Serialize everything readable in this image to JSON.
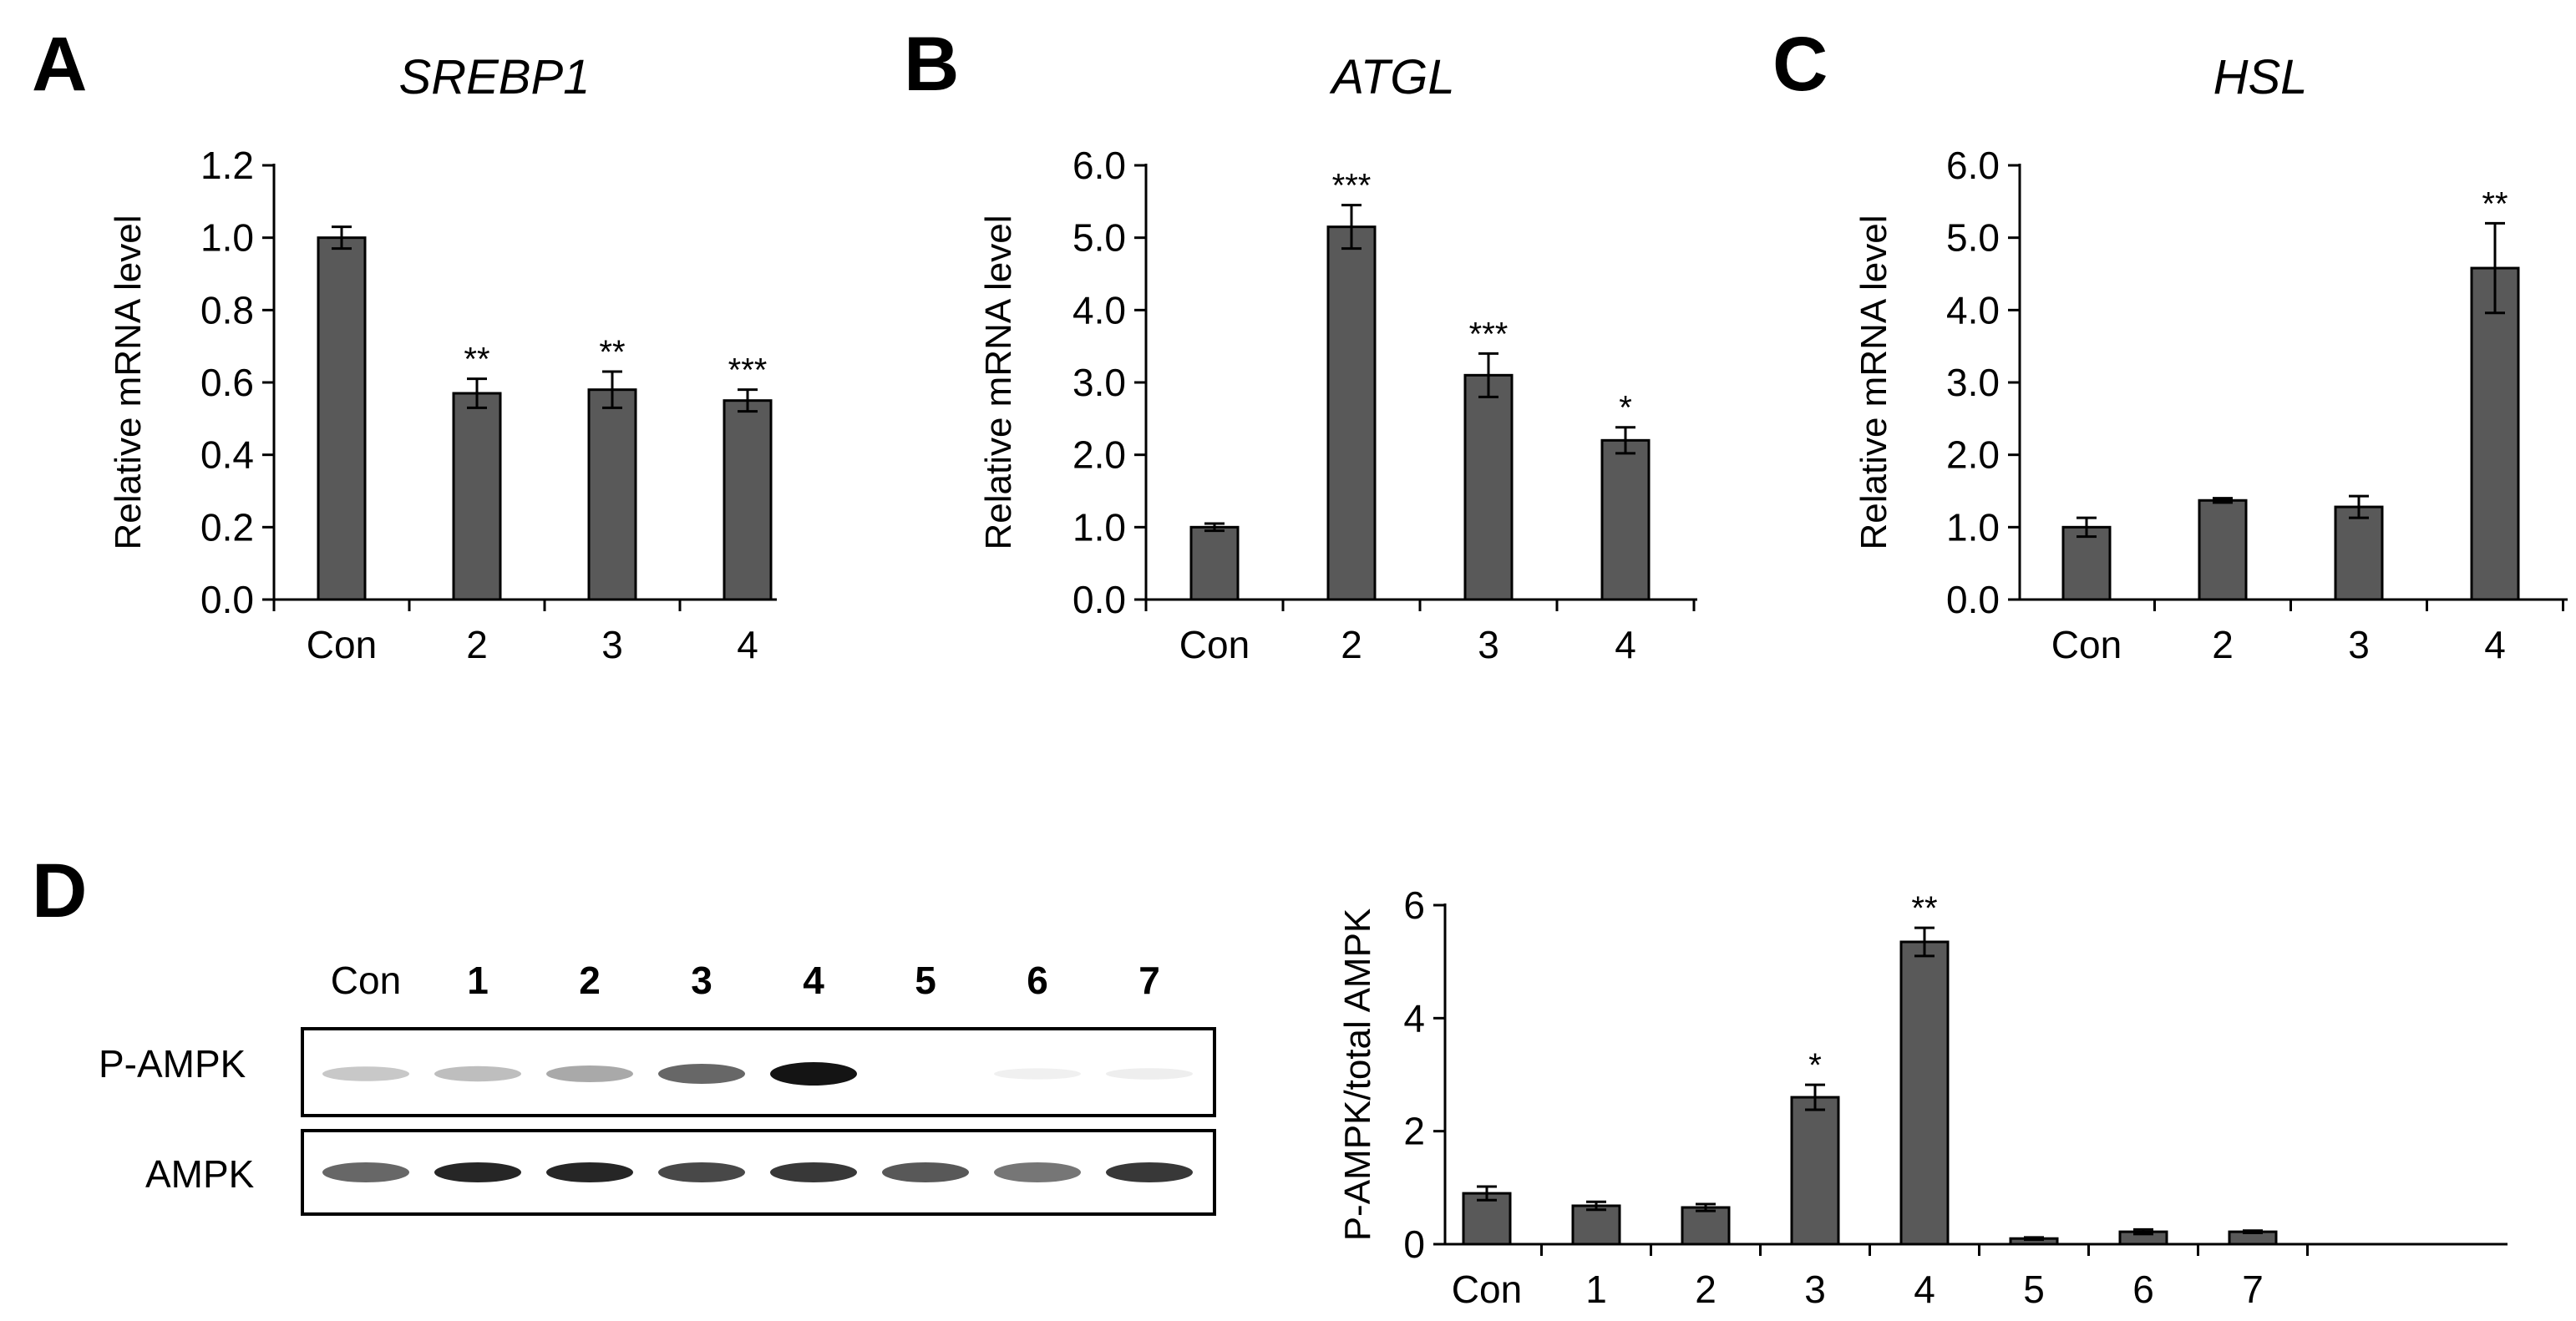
{
  "panels": {
    "A": "A",
    "B": "B",
    "C": "C",
    "D": "D"
  },
  "blot": {
    "lanes": [
      "Con",
      "1",
      "2",
      "3",
      "4",
      "5",
      "6",
      "7"
    ],
    "rows": [
      "P-AMPK",
      "AMPK"
    ],
    "band_intensity": {
      "P-AMPK": [
        0.35,
        0.4,
        0.5,
        0.75,
        1.0,
        0.0,
        0.08,
        0.1
      ],
      "AMPK": [
        0.75,
        0.95,
        0.95,
        0.85,
        0.9,
        0.8,
        0.7,
        0.9
      ]
    }
  },
  "chart_data": [
    {
      "type": "bar",
      "title": "SREBP1",
      "xlabel": "",
      "ylabel": "Relative mRNA level",
      "categories": [
        "Con",
        "2",
        "3",
        "4"
      ],
      "values": [
        1.0,
        0.57,
        0.58,
        0.55
      ],
      "errors": [
        0.03,
        0.04,
        0.05,
        0.03
      ],
      "significance": [
        "",
        "**",
        "**",
        "***"
      ],
      "ylim": [
        0,
        1.2
      ],
      "yticks": [
        "0.0",
        "0.2",
        "0.4",
        "0.6",
        "0.8",
        "1.0",
        "1.2"
      ],
      "bar_color": "#595959"
    },
    {
      "type": "bar",
      "title": "ATGL",
      "xlabel": "",
      "ylabel": "Relative mRNA level",
      "categories": [
        "Con",
        "2",
        "3",
        "4"
      ],
      "values": [
        1.0,
        5.15,
        3.1,
        2.2
      ],
      "errors": [
        0.05,
        0.3,
        0.3,
        0.18
      ],
      "significance": [
        "",
        "***",
        "***",
        "*"
      ],
      "ylim": [
        0,
        6
      ],
      "yticks": [
        "0.0",
        "1.0",
        "2.0",
        "3.0",
        "4.0",
        "5.0",
        "6.0"
      ],
      "bar_color": "#595959"
    },
    {
      "type": "bar",
      "title": "HSL",
      "xlabel": "",
      "ylabel": "Relative mRNA level",
      "categories": [
        "Con",
        "2",
        "3",
        "4"
      ],
      "values": [
        1.0,
        1.37,
        1.28,
        4.58
      ],
      "errors": [
        0.13,
        0.03,
        0.15,
        0.62
      ],
      "significance": [
        "",
        "",
        "",
        "**"
      ],
      "ylim": [
        0,
        6
      ],
      "yticks": [
        "0.0",
        "1.0",
        "2.0",
        "3.0",
        "4.0",
        "5.0",
        "6.0"
      ],
      "bar_color": "#595959"
    },
    {
      "type": "bar",
      "title": "",
      "xlabel": "",
      "ylabel": "P-AMPK/total AMPK",
      "categories": [
        "Con",
        "1",
        "2",
        "3",
        "4",
        "5",
        "6",
        "7"
      ],
      "values": [
        0.9,
        0.68,
        0.65,
        2.6,
        5.35,
        0.1,
        0.22,
        0.22
      ],
      "errors": [
        0.12,
        0.07,
        0.06,
        0.22,
        0.25,
        0.02,
        0.04,
        0.02
      ],
      "significance": [
        "",
        "",
        "",
        "*",
        "**",
        "",
        "",
        ""
      ],
      "ylim": [
        0,
        6
      ],
      "yticks": [
        "0",
        "2",
        "4",
        "6"
      ],
      "bar_color": "#595959"
    }
  ]
}
